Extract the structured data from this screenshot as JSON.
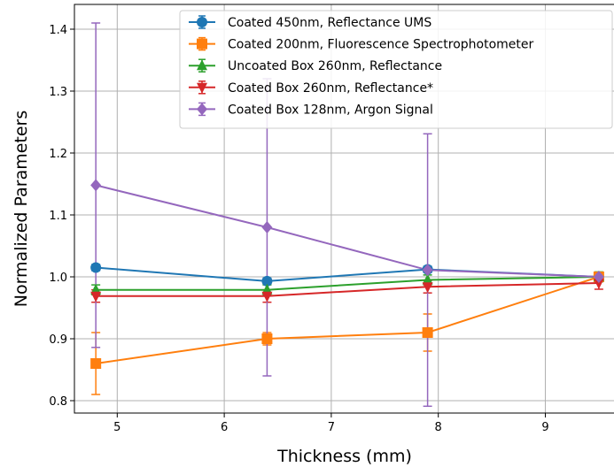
{
  "chart_data": {
    "type": "line",
    "xlabel": "Thickness (mm)",
    "ylabel": "Normalized Parameters",
    "xlim": [
      4.6,
      9.65
    ],
    "ylim": [
      0.78,
      1.44
    ],
    "xticks": [
      5,
      6,
      7,
      8,
      9
    ],
    "yticks": [
      0.8,
      0.9,
      1.0,
      1.1,
      1.2,
      1.3,
      1.4
    ],
    "grid": true,
    "legend_position": "top-right",
    "series": [
      {
        "name": "Coated 450nm, Reflectance UMS",
        "color": "#1f77b4",
        "marker": "circle",
        "x": [
          4.8,
          6.4,
          7.9,
          9.5
        ],
        "y": [
          1.015,
          0.993,
          1.012,
          1.0
        ],
        "yerr": [
          0.005,
          0.005,
          0.005,
          0.005
        ]
      },
      {
        "name": "Coated 200nm, Fluorescence Spectrophotometer",
        "color": "#ff7f0e",
        "marker": "square",
        "x": [
          4.8,
          6.4,
          7.9,
          9.5
        ],
        "y": [
          0.86,
          0.9,
          0.91,
          1.0
        ],
        "yerr": [
          0.05,
          0.01,
          0.03,
          0.0
        ]
      },
      {
        "name": "Uncoated Box 260nm, Reflectance",
        "color": "#2ca02c",
        "marker": "triangle-up",
        "x": [
          4.8,
          6.4,
          7.9,
          9.5
        ],
        "y": [
          0.979,
          0.979,
          0.995,
          1.0
        ],
        "yerr": [
          0.008,
          0.008,
          0.008,
          0.008
        ]
      },
      {
        "name": "Coated Box 260nm, Reflectance*",
        "color": "#d62728",
        "marker": "triangle-down",
        "x": [
          4.8,
          6.4,
          7.9,
          9.5
        ],
        "y": [
          0.969,
          0.969,
          0.984,
          0.99
        ],
        "yerr": [
          0.01,
          0.01,
          0.01,
          0.01
        ]
      },
      {
        "name": "Coated Box 128nm, Argon Signal",
        "color": "#9467bd",
        "marker": "diamond",
        "x": [
          4.8,
          6.4,
          7.9,
          9.5
        ],
        "y": [
          1.148,
          1.08,
          1.011,
          1.0
        ],
        "yerr": [
          0.262,
          0.24,
          0.22,
          0.005
        ]
      }
    ]
  }
}
